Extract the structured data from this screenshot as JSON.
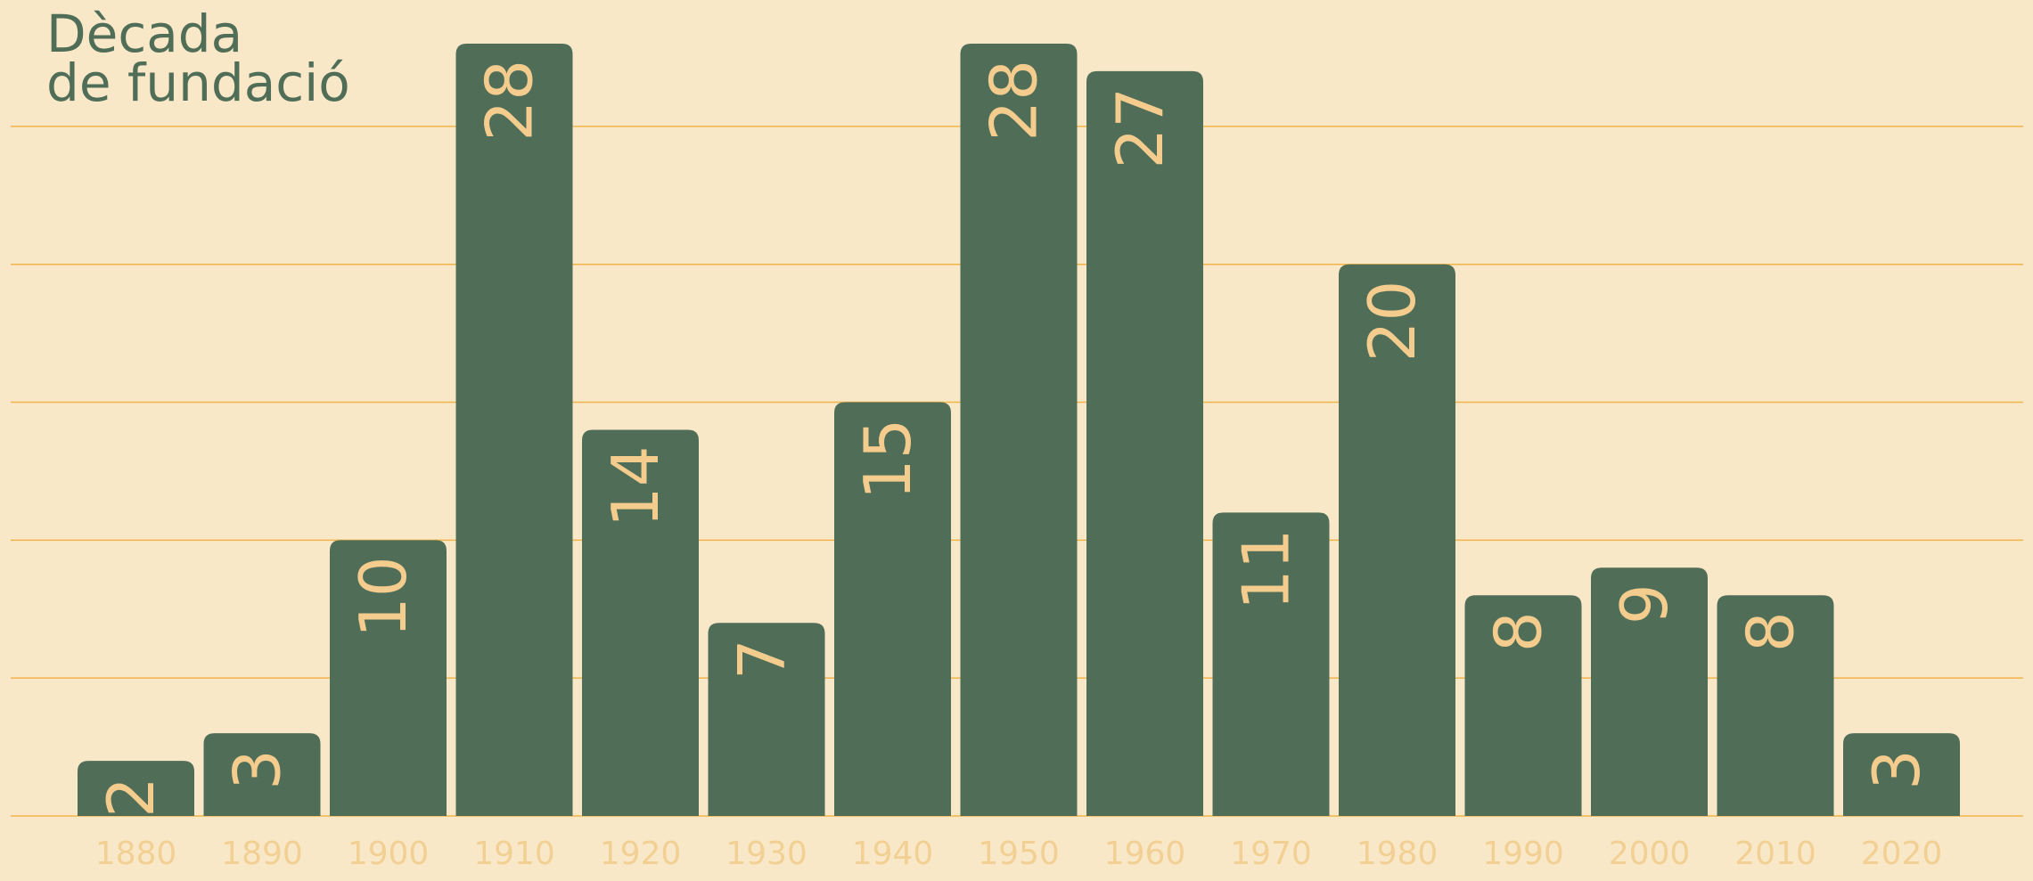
{
  "chart_data": {
    "type": "bar",
    "title": [
      "Dècada",
      "de fundació"
    ],
    "categories": [
      "1880",
      "1890",
      "1900",
      "1910",
      "1920",
      "1930",
      "1940",
      "1950",
      "1960",
      "1970",
      "1980",
      "1990",
      "2000",
      "2010",
      "2020"
    ],
    "values": [
      2,
      3,
      10,
      28,
      14,
      7,
      15,
      28,
      27,
      11,
      20,
      8,
      9,
      8,
      3
    ],
    "color": "#506e57",
    "ylim": [
      0,
      29
    ],
    "yticks": [
      0,
      5,
      10,
      15,
      20,
      25
    ],
    "grid": true
  }
}
